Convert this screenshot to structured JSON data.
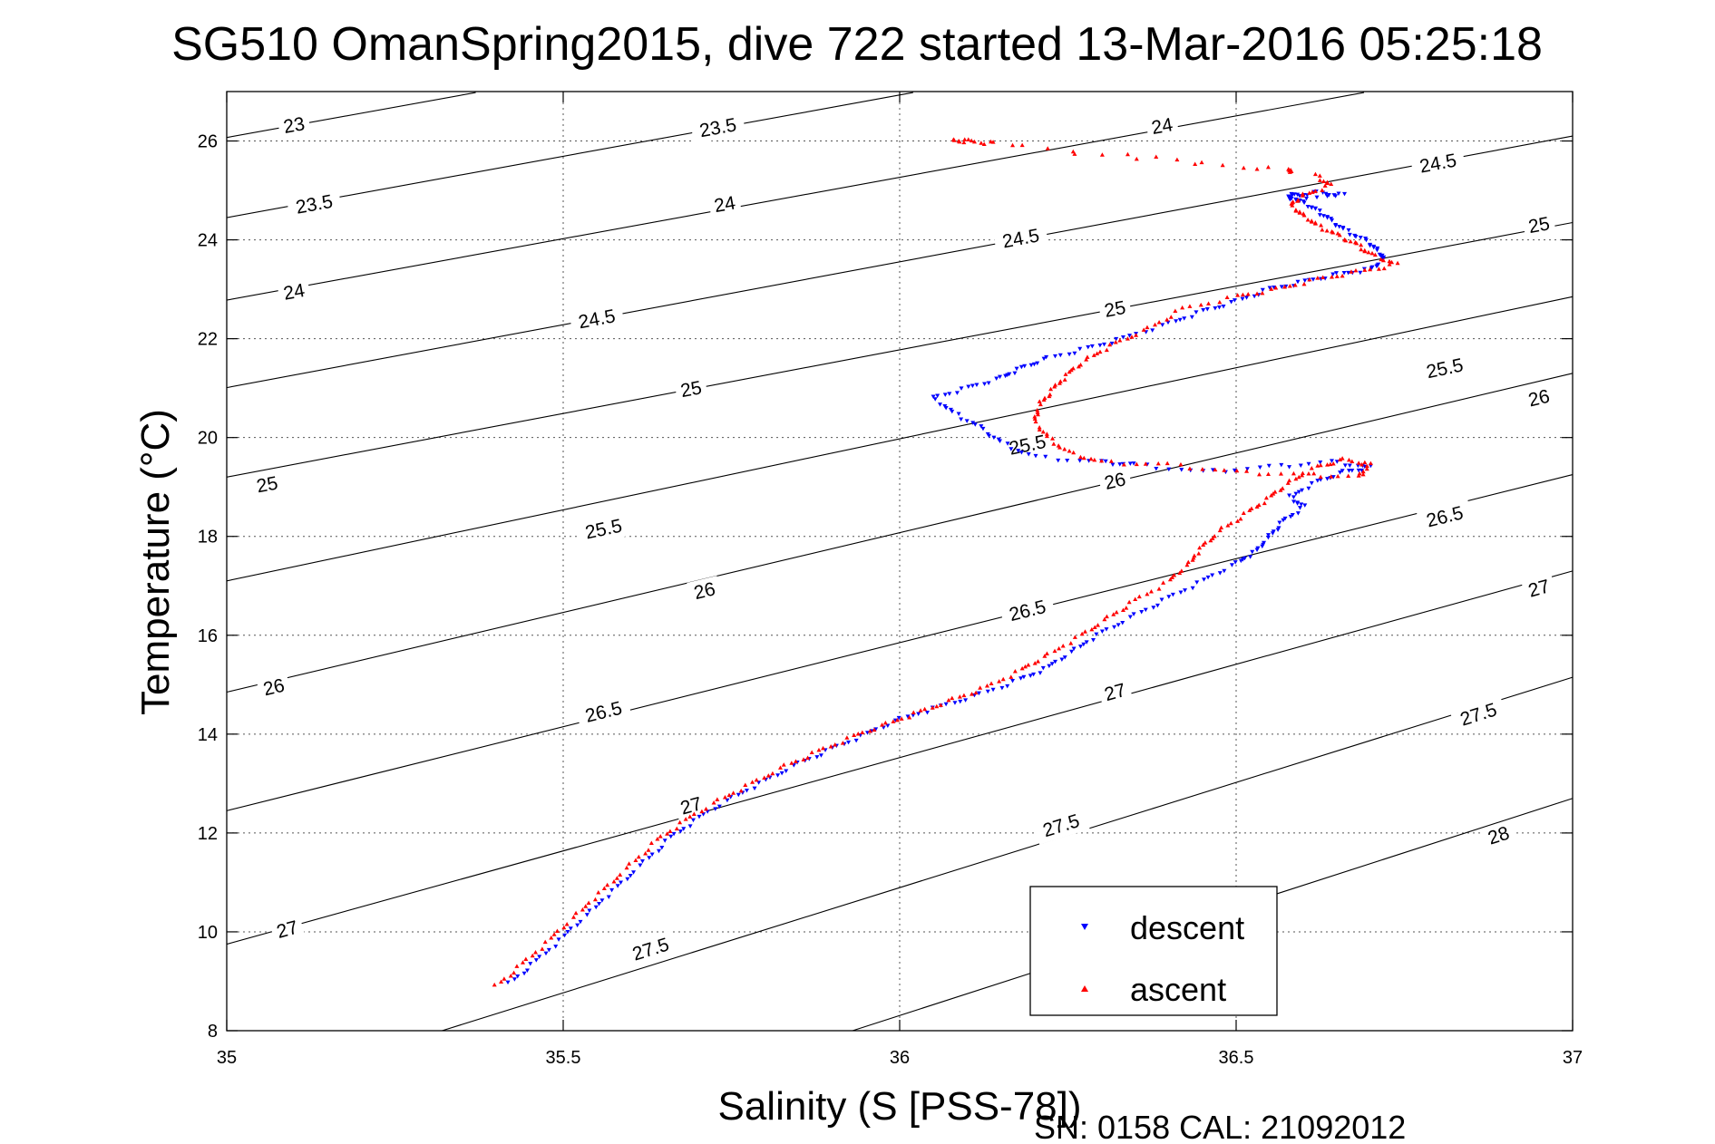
{
  "chart_data": {
    "type": "scatter",
    "title": "SG510 OmanSpring2015, dive 722 started 13-Mar-2016 05:25:18",
    "xlabel": "Salinity (S [PSS-78])",
    "ylabel": "Temperature (°C)",
    "xlim": [
      35,
      37
    ],
    "ylim": [
      8,
      27
    ],
    "xticks": [
      35,
      35.5,
      36,
      36.5,
      37
    ],
    "xtick_labels": [
      "35",
      "35.5",
      "36",
      "36.5",
      "37"
    ],
    "yticks": [
      8,
      10,
      12,
      14,
      16,
      18,
      20,
      22,
      24,
      26
    ],
    "ytick_labels": [
      "8",
      "10",
      "12",
      "14",
      "16",
      "18",
      "20",
      "22",
      "24",
      "26"
    ],
    "grid": true,
    "legend_position": "bottom-right",
    "footer": "SN: 0158  CAL: 21092012",
    "contours": {
      "lines": [
        {
          "level": 23.0,
          "label": "23",
          "points": [
            [
              35.0,
              26.07
            ],
            [
              35.37,
              26.98
            ]
          ],
          "labels_at": [
            [
              35.1,
              26.32
            ]
          ]
        },
        {
          "level": 23.5,
          "label": "23.5",
          "points": [
            [
              35.0,
              24.45
            ],
            [
              36.02,
              26.98
            ]
          ],
          "labels_at": [
            [
              35.13,
              24.72
            ],
            [
              35.73,
              26.27
            ]
          ]
        },
        {
          "level": 24.0,
          "label": "24",
          "points": [
            [
              35.0,
              22.78
            ],
            [
              36.69,
              26.98
            ]
          ],
          "labels_at": [
            [
              35.1,
              22.95
            ],
            [
              35.74,
              24.72
            ],
            [
              36.39,
              26.3
            ]
          ]
        },
        {
          "level": 24.5,
          "label": "24.5",
          "points": [
            [
              35.0,
              21.01
            ],
            [
              37.0,
              26.1
            ]
          ],
          "labels_at": [
            [
              35.55,
              22.4
            ],
            [
              36.18,
              24.03
            ],
            [
              36.8,
              25.55
            ]
          ]
        },
        {
          "level": 25.0,
          "label": "25",
          "points": [
            [
              35.0,
              19.2
            ],
            [
              37.0,
              24.35
            ]
          ],
          "labels_at": [
            [
              35.06,
              19.05
            ],
            [
              35.69,
              20.98
            ],
            [
              36.32,
              22.6
            ],
            [
              36.95,
              24.3
            ]
          ]
        },
        {
          "level": 25.5,
          "label": "25.5",
          "points": [
            [
              35.0,
              17.1
            ],
            [
              37.0,
              22.85
            ]
          ],
          "labels_at": [
            [
              35.56,
              18.15
            ],
            [
              36.19,
              19.85
            ],
            [
              36.81,
              21.4
            ]
          ]
        },
        {
          "level": 26.0,
          "label": "26",
          "points": [
            [
              35.0,
              14.85
            ],
            [
              37.0,
              21.3
            ]
          ],
          "labels_at": [
            [
              35.07,
              14.95
            ],
            [
              35.71,
              16.9
            ],
            [
              36.32,
              19.12
            ],
            [
              36.95,
              20.8
            ]
          ]
        },
        {
          "level": 26.5,
          "label": "26.5",
          "points": [
            [
              35.0,
              12.45
            ],
            [
              37.0,
              19.25
            ]
          ],
          "labels_at": [
            [
              35.56,
              14.45
            ],
            [
              36.19,
              16.5
            ],
            [
              36.81,
              18.4
            ]
          ]
        },
        {
          "level": 27.0,
          "label": "27",
          "points": [
            [
              35.0,
              9.75
            ],
            [
              37.0,
              17.3
            ]
          ],
          "labels_at": [
            [
              35.09,
              10.05
            ],
            [
              35.69,
              12.55
            ],
            [
              36.32,
              14.85
            ],
            [
              36.95,
              16.95
            ]
          ]
        },
        {
          "level": 27.5,
          "label": "27.5",
          "points": [
            [
              35.32,
              8.0
            ],
            [
              37.0,
              15.15
            ]
          ],
          "labels_at": [
            [
              35.63,
              9.65
            ],
            [
              36.24,
              12.15
            ],
            [
              36.86,
              14.4
            ]
          ]
        },
        {
          "level": 28.0,
          "label": "28",
          "points": [
            [
              35.93,
              8.0
            ],
            [
              37.0,
              12.7
            ]
          ],
          "labels_at": [
            [
              36.89,
              11.95
            ]
          ]
        }
      ]
    },
    "series": [
      {
        "name": "descent",
        "color": "#0000ff",
        "marker": "triangle-down",
        "x": [
          35.42,
          35.46,
          35.5,
          35.54,
          35.58,
          35.62,
          35.66,
          35.7,
          35.75,
          35.8,
          35.85,
          35.9,
          35.95,
          36.0,
          36.06,
          36.12,
          36.18,
          36.22,
          36.26,
          36.3,
          36.35,
          36.4,
          36.45,
          36.5,
          36.53,
          36.55,
          36.57,
          36.6,
          36.58,
          36.62,
          36.66,
          36.7,
          36.64,
          36.55,
          36.45,
          36.35,
          36.3,
          36.2,
          36.15,
          36.12,
          36.08,
          36.05,
          36.1,
          36.15,
          36.18,
          36.22,
          36.28,
          36.33,
          36.4,
          36.45,
          36.5,
          36.55,
          36.6,
          36.65,
          36.7,
          36.72,
          36.71,
          36.69,
          36.66,
          36.64,
          36.62,
          36.6,
          36.58,
          36.62,
          36.66,
          36.58
        ],
        "y": [
          8.95,
          9.4,
          9.9,
          10.4,
          10.9,
          11.4,
          11.9,
          12.3,
          12.7,
          13.05,
          13.4,
          13.7,
          14.0,
          14.3,
          14.55,
          14.8,
          15.1,
          15.35,
          15.7,
          16.05,
          16.4,
          16.75,
          17.1,
          17.45,
          17.7,
          18.0,
          18.3,
          18.6,
          18.8,
          19.1,
          19.3,
          19.4,
          19.5,
          19.4,
          19.3,
          19.45,
          19.5,
          19.6,
          19.9,
          20.2,
          20.5,
          20.8,
          21.0,
          21.2,
          21.4,
          21.6,
          21.8,
          22.0,
          22.3,
          22.55,
          22.75,
          23.0,
          23.15,
          23.3,
          23.4,
          23.6,
          23.8,
          24.0,
          24.2,
          24.4,
          24.6,
          24.75,
          24.9,
          24.95,
          24.9,
          24.85
        ]
      },
      {
        "name": "ascent",
        "color": "#ff0000",
        "marker": "triangle-up",
        "x": [
          35.4,
          35.44,
          35.48,
          35.52,
          35.56,
          35.6,
          35.64,
          35.68,
          35.73,
          35.78,
          35.83,
          35.88,
          35.93,
          35.98,
          36.03,
          36.08,
          36.13,
          36.18,
          36.22,
          36.27,
          36.31,
          36.35,
          36.4,
          36.43,
          36.45,
          36.48,
          36.52,
          36.55,
          36.58,
          36.62,
          36.66,
          36.7,
          36.68,
          36.6,
          36.5,
          36.4,
          36.3,
          36.25,
          36.22,
          36.2,
          36.21,
          36.23,
          36.25,
          36.28,
          36.32,
          36.37,
          36.42,
          36.5,
          36.56,
          36.62,
          36.68,
          36.74,
          36.7,
          36.68,
          36.65,
          36.62,
          36.6,
          36.58,
          36.6,
          36.64,
          36.62,
          36.08,
          36.1,
          36.14,
          36.38,
          36.58
        ],
        "y": [
          8.9,
          9.35,
          9.85,
          10.35,
          10.85,
          11.35,
          11.85,
          12.25,
          12.65,
          13.0,
          13.35,
          13.65,
          13.95,
          14.2,
          14.45,
          14.7,
          14.95,
          15.3,
          15.6,
          16.0,
          16.35,
          16.7,
          17.1,
          17.45,
          17.8,
          18.15,
          18.5,
          18.8,
          19.1,
          19.4,
          19.55,
          19.45,
          19.2,
          19.25,
          19.3,
          19.45,
          19.5,
          19.7,
          20.0,
          20.35,
          20.7,
          21.0,
          21.3,
          21.6,
          21.9,
          22.2,
          22.6,
          22.85,
          23.0,
          23.2,
          23.35,
          23.5,
          23.7,
          23.9,
          24.1,
          24.3,
          24.5,
          24.7,
          24.9,
          25.1,
          25.3,
          26.0,
          26.0,
          25.95,
          25.65,
          25.4
        ]
      }
    ]
  }
}
